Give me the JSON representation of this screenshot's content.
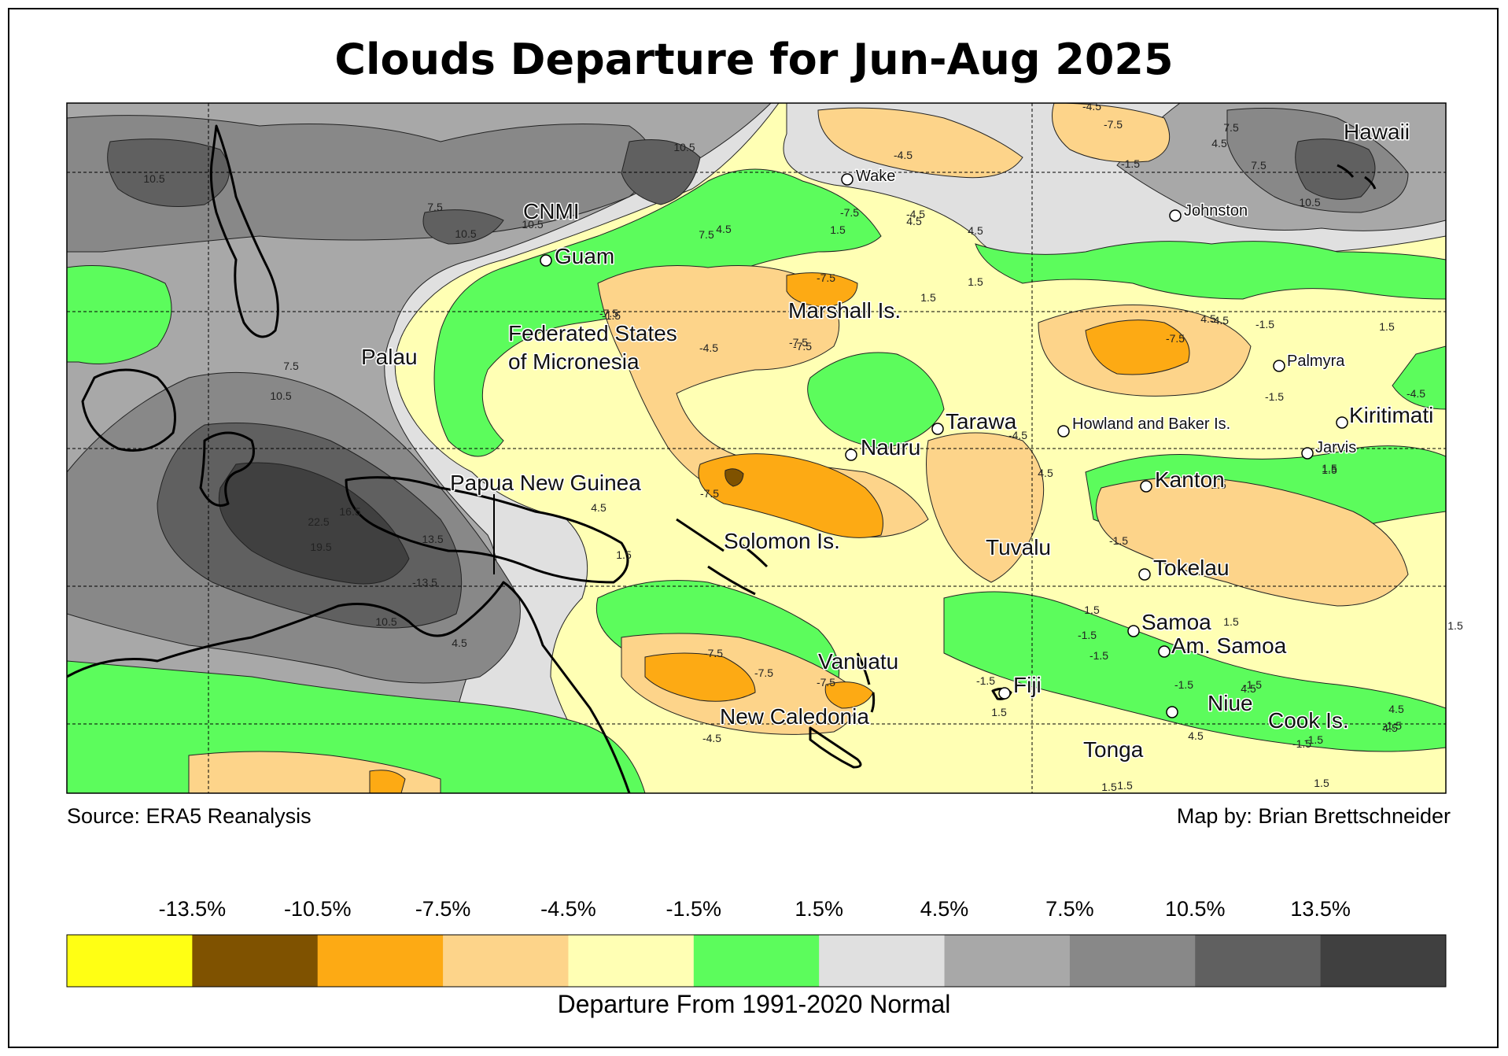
{
  "title": "Clouds Departure for Jun-Aug 2025",
  "source": "Source: ERA5 Reanalysis",
  "credit": "Map by: Brian Brettschneider",
  "legend": {
    "caption": "Departure From 1991-2020 Normal",
    "ticks": [
      "-13.5%",
      "-10.5%",
      "-7.5%",
      "-4.5%",
      "-1.5%",
      "1.5%",
      "4.5%",
      "7.5%",
      "10.5%",
      "13.5%"
    ],
    "colors": [
      "#ffff14",
      "#7f5200",
      "#fdaa14",
      "#fdd48a",
      "#ffffb4",
      "#5cfc5c",
      "#e0e0e0",
      "#a8a8a8",
      "#888888",
      "#606060",
      "#404040"
    ]
  },
  "places": [
    {
      "name": "CNMI",
      "size": 28
    },
    {
      "name": "Guam",
      "size": 28
    },
    {
      "name": "Wake",
      "size": 20
    },
    {
      "name": "Johnston",
      "size": 20
    },
    {
      "name": "Hawaii",
      "size": 28
    },
    {
      "name": "Marshall Is.",
      "size": 28
    },
    {
      "name": "Federated States",
      "size": 28
    },
    {
      "name": "of Micronesia",
      "size": 28
    },
    {
      "name": "Palau",
      "size": 28
    },
    {
      "name": "Palmyra",
      "size": 20
    },
    {
      "name": "Tarawa",
      "size": 28
    },
    {
      "name": "Howland and Baker Is.",
      "size": 20
    },
    {
      "name": "Kiritimati",
      "size": 28
    },
    {
      "name": "Nauru",
      "size": 28
    },
    {
      "name": "Jarvis",
      "size": 20
    },
    {
      "name": "Kanton",
      "size": 28
    },
    {
      "name": "Papua New Guinea",
      "size": 28
    },
    {
      "name": "Solomon Is.",
      "size": 28
    },
    {
      "name": "Tuvalu",
      "size": 28
    },
    {
      "name": "Tokelau",
      "size": 28
    },
    {
      "name": "Samoa",
      "size": 28
    },
    {
      "name": "Am. Samoa",
      "size": 28
    },
    {
      "name": "Vanuatu",
      "size": 28
    },
    {
      "name": "Fiji",
      "size": 28
    },
    {
      "name": "New Caledonia",
      "size": 28
    },
    {
      "name": "Niue",
      "size": 28
    },
    {
      "name": "Cook Is.",
      "size": 28
    },
    {
      "name": "Tonga",
      "size": 28
    }
  ],
  "contour_labels": [
    "10.5",
    "10.5",
    "10.5",
    "10.5",
    "7.5",
    "7.5",
    "4.5",
    "-4.5",
    "-7.5",
    "-4.5",
    "-1.5",
    "1.5",
    "-4.5",
    "4.5",
    "1.5",
    "7.5",
    "10.5",
    "7.5",
    "4.5",
    "-4.5",
    "-7.5",
    "-7.5",
    "-7.5",
    "1.5",
    "-7.5",
    "-1.5",
    "-4.5",
    "-7.5",
    "4.5",
    "-1.5",
    "-1.5",
    "1.5",
    "1.5",
    "7.5",
    "10.5",
    "22.5",
    "19.5",
    "13.5",
    "16.5",
    "-13.5",
    "4.5",
    "10.5",
    "4.5",
    "1.5",
    "-7.5",
    "-4.5",
    "4.5",
    "-1.5",
    "1.5",
    "1.5",
    "-7.5",
    "-7.5",
    "-7.5",
    "-4.5",
    "-1.5",
    "1.5",
    "-1.5",
    "-1.5",
    "1.5",
    "-1.5",
    "-1.5",
    "4.5",
    "4.5",
    "-1.5",
    "4.5",
    "4.5",
    "-1.5",
    "1.5",
    "-4.5",
    "-7.5",
    "4.5",
    "1.5",
    "1.5",
    "1.5",
    "-1.5",
    "1.5"
  ]
}
